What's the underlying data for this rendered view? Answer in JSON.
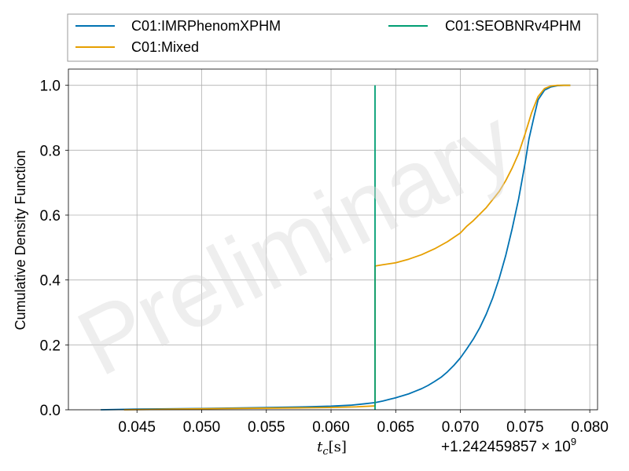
{
  "chart_data": {
    "type": "line",
    "xlabel": "t_c[s]",
    "ylabel": "Cumulative Density Function",
    "x_offset_label": "+1.242459857 × 10",
    "x_offset_exponent": "9",
    "xlim": [
      0.0397,
      0.0806
    ],
    "ylim": [
      0.0,
      1.05
    ],
    "xticks": [
      0.045,
      0.05,
      0.055,
      0.06,
      0.065,
      0.07,
      0.075,
      0.08
    ],
    "xtick_labels": [
      "0.045",
      "0.050",
      "0.055",
      "0.060",
      "0.065",
      "0.070",
      "0.075",
      "0.080"
    ],
    "yticks": [
      0.0,
      0.2,
      0.4,
      0.6,
      0.8,
      1.0
    ],
    "ytick_labels": [
      "0.0",
      "0.2",
      "0.4",
      "0.6",
      "0.8",
      "1.0"
    ],
    "grid": true,
    "legend_position": "top, above plot, 2 columns",
    "watermark": "Preliminary",
    "series": [
      {
        "name": "C01:IMRPhenomXPHM",
        "color": "#0072B2",
        "x": [
          0.0422,
          0.045,
          0.05,
          0.055,
          0.058,
          0.06,
          0.0615,
          0.0625,
          0.0634,
          0.064,
          0.0645,
          0.065,
          0.0655,
          0.066,
          0.0665,
          0.067,
          0.0675,
          0.068,
          0.0685,
          0.069,
          0.0695,
          0.07,
          0.0705,
          0.071,
          0.0715,
          0.072,
          0.0725,
          0.073,
          0.0735,
          0.074,
          0.0745,
          0.075,
          0.0753,
          0.0757,
          0.076,
          0.0765,
          0.077,
          0.0775,
          0.078,
          0.0785
        ],
        "y": [
          0.0,
          0.002,
          0.004,
          0.007,
          0.009,
          0.011,
          0.014,
          0.018,
          0.022,
          0.027,
          0.032,
          0.037,
          0.043,
          0.049,
          0.057,
          0.065,
          0.075,
          0.087,
          0.1,
          0.117,
          0.137,
          0.16,
          0.188,
          0.218,
          0.253,
          0.295,
          0.345,
          0.405,
          0.475,
          0.558,
          0.65,
          0.76,
          0.835,
          0.905,
          0.955,
          0.985,
          0.995,
          0.999,
          1.0,
          1.0
        ]
      },
      {
        "name": "C01:Mixed",
        "color": "#E69F00",
        "x": [
          0.044,
          0.046,
          0.048,
          0.05,
          0.052,
          0.055,
          0.058,
          0.06,
          0.062,
          0.0634,
          0.0634,
          0.064,
          0.065,
          0.066,
          0.067,
          0.068,
          0.069,
          0.07,
          0.0705,
          0.071,
          0.072,
          0.073,
          0.0735,
          0.074,
          0.0745,
          0.075,
          0.0755,
          0.076,
          0.0765,
          0.077,
          0.0775,
          0.078,
          0.0785
        ],
        "y": [
          0.0,
          0.001,
          0.002,
          0.003,
          0.004,
          0.005,
          0.006,
          0.007,
          0.009,
          0.012,
          0.443,
          0.447,
          0.453,
          0.464,
          0.478,
          0.496,
          0.518,
          0.545,
          0.566,
          0.583,
          0.623,
          0.673,
          0.706,
          0.745,
          0.79,
          0.85,
          0.915,
          0.965,
          0.99,
          0.998,
          1.0,
          1.0,
          1.0
        ]
      },
      {
        "name": "C01:SEOBNRv4PHM",
        "color": "#009E73",
        "x": [
          0.0634,
          0.0634
        ],
        "y": [
          0.0,
          1.0
        ]
      }
    ]
  }
}
